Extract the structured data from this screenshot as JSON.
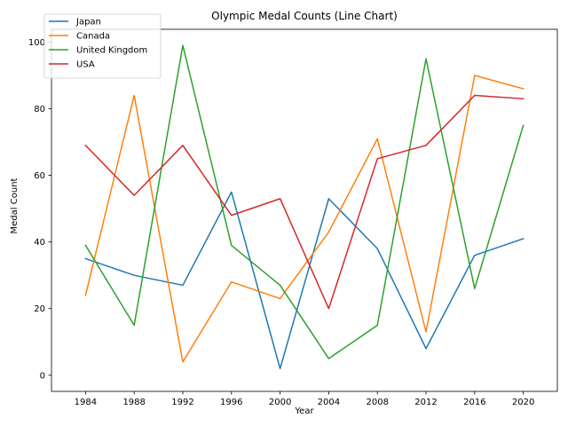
{
  "chart_data": {
    "type": "line",
    "title": "Olympic Medal Counts (Line Chart)",
    "xlabel": "Year",
    "ylabel": "Medal Count",
    "x": [
      1984,
      1988,
      1992,
      1996,
      2000,
      2004,
      2008,
      2012,
      2016,
      2020
    ],
    "xlim": [
      1981.2,
      2022.8
    ],
    "ylim": [
      -4.85,
      103.85
    ],
    "yticks": [
      0,
      20,
      40,
      60,
      80,
      100
    ],
    "grid": false,
    "legend_position": "top-left",
    "series": [
      {
        "name": "Japan",
        "color": "#1f77b4",
        "values": [
          35,
          30,
          27,
          55,
          2,
          53,
          38,
          8,
          36,
          41
        ]
      },
      {
        "name": "Canada",
        "color": "#ff7f0e",
        "values": [
          24,
          84,
          4,
          28,
          23,
          43,
          71,
          13,
          90,
          86
        ]
      },
      {
        "name": "United Kingdom",
        "color": "#2ca02c",
        "values": [
          39,
          15,
          99,
          39,
          27,
          5,
          15,
          95,
          26,
          75
        ]
      },
      {
        "name": "USA",
        "color": "#d62728",
        "values": [
          69,
          54,
          69,
          48,
          53,
          20,
          65,
          69,
          84,
          83
        ]
      }
    ]
  }
}
